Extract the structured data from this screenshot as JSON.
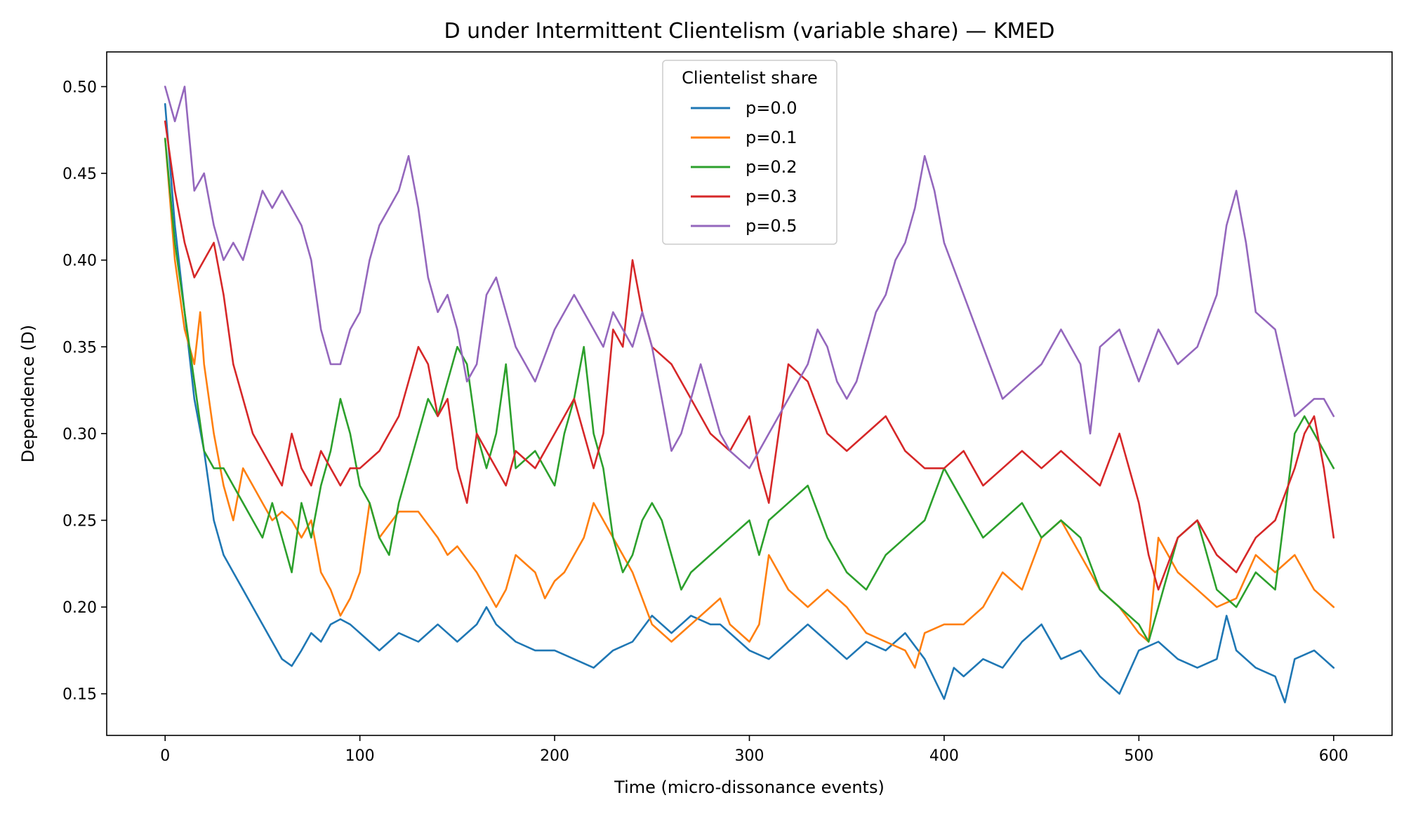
{
  "chart_data": {
    "type": "line",
    "title": "D under Intermittent Clientelism (variable share) — KMED",
    "xlabel": "Time (micro-dissonance events)",
    "ylabel": "Dependence (D)",
    "xlim": [
      -30,
      630
    ],
    "ylim": [
      0.126,
      0.52
    ],
    "xticks": [
      0,
      100,
      200,
      300,
      400,
      500,
      600
    ],
    "yticks": [
      0.15,
      0.2,
      0.25,
      0.3,
      0.35,
      0.4,
      0.45,
      0.5
    ],
    "xtick_labels": [
      "0",
      "100",
      "200",
      "300",
      "400",
      "500",
      "600"
    ],
    "ytick_labels": [
      "0.15",
      "0.20",
      "0.25",
      "0.30",
      "0.35",
      "0.40",
      "0.45",
      "0.50"
    ],
    "grid": false,
    "legend": {
      "title": "Clientelist share",
      "placement": "top-center"
    },
    "series": [
      {
        "name": "p=0.0",
        "color": "#1f77b4",
        "x": [
          0,
          5,
          10,
          15,
          20,
          25,
          30,
          35,
          40,
          45,
          50,
          55,
          60,
          65,
          70,
          75,
          80,
          85,
          90,
          95,
          100,
          110,
          120,
          130,
          140,
          150,
          160,
          165,
          170,
          175,
          180,
          190,
          200,
          210,
          220,
          230,
          240,
          250,
          255,
          260,
          265,
          270,
          280,
          285,
          290,
          300,
          310,
          320,
          330,
          340,
          350,
          360,
          370,
          380,
          390,
          400,
          405,
          410,
          420,
          430,
          440,
          450,
          460,
          470,
          480,
          490,
          500,
          510,
          520,
          530,
          540,
          545,
          550,
          560,
          570,
          575,
          580,
          590,
          595,
          600
        ],
        "y": [
          0.49,
          0.42,
          0.37,
          0.32,
          0.29,
          0.25,
          0.23,
          0.22,
          0.21,
          0.2,
          0.19,
          0.18,
          0.17,
          0.166,
          0.175,
          0.185,
          0.18,
          0.19,
          0.193,
          0.19,
          0.185,
          0.175,
          0.185,
          0.18,
          0.19,
          0.18,
          0.19,
          0.2,
          0.19,
          0.185,
          0.18,
          0.175,
          0.175,
          0.17,
          0.165,
          0.175,
          0.18,
          0.195,
          0.19,
          0.185,
          0.19,
          0.195,
          0.19,
          0.19,
          0.185,
          0.175,
          0.17,
          0.18,
          0.19,
          0.18,
          0.17,
          0.18,
          0.175,
          0.185,
          0.17,
          0.147,
          0.165,
          0.16,
          0.17,
          0.165,
          0.18,
          0.19,
          0.17,
          0.175,
          0.16,
          0.15,
          0.175,
          0.18,
          0.17,
          0.165,
          0.17,
          0.195,
          0.175,
          0.165,
          0.16,
          0.145,
          0.17,
          0.175,
          0.17,
          0.165
        ]
      },
      {
        "name": "p=0.1",
        "color": "#ff7f0e",
        "x": [
          0,
          5,
          10,
          15,
          18,
          20,
          25,
          30,
          35,
          40,
          45,
          50,
          55,
          60,
          65,
          70,
          75,
          80,
          85,
          90,
          95,
          100,
          105,
          110,
          120,
          130,
          140,
          145,
          150,
          160,
          170,
          175,
          180,
          190,
          195,
          200,
          205,
          210,
          215,
          220,
          230,
          235,
          240,
          250,
          260,
          270,
          280,
          285,
          290,
          300,
          305,
          310,
          320,
          330,
          340,
          350,
          360,
          370,
          380,
          385,
          390,
          400,
          410,
          420,
          430,
          440,
          450,
          460,
          470,
          480,
          490,
          500,
          505,
          510,
          520,
          530,
          540,
          550,
          560,
          570,
          580,
          590,
          600
        ],
        "y": [
          0.47,
          0.4,
          0.36,
          0.34,
          0.37,
          0.34,
          0.3,
          0.27,
          0.25,
          0.28,
          0.27,
          0.26,
          0.25,
          0.255,
          0.25,
          0.24,
          0.25,
          0.22,
          0.21,
          0.195,
          0.205,
          0.22,
          0.26,
          0.24,
          0.255,
          0.255,
          0.24,
          0.23,
          0.235,
          0.22,
          0.2,
          0.21,
          0.23,
          0.22,
          0.205,
          0.215,
          0.22,
          0.23,
          0.24,
          0.26,
          0.24,
          0.23,
          0.22,
          0.19,
          0.18,
          0.19,
          0.2,
          0.205,
          0.19,
          0.18,
          0.19,
          0.23,
          0.21,
          0.2,
          0.21,
          0.2,
          0.185,
          0.18,
          0.175,
          0.165,
          0.185,
          0.19,
          0.19,
          0.2,
          0.22,
          0.21,
          0.24,
          0.25,
          0.23,
          0.21,
          0.2,
          0.185,
          0.18,
          0.24,
          0.22,
          0.21,
          0.2,
          0.205,
          0.23,
          0.22,
          0.23,
          0.21,
          0.2
        ]
      },
      {
        "name": "p=0.2",
        "color": "#2ca02c",
        "x": [
          0,
          5,
          10,
          15,
          20,
          25,
          30,
          35,
          40,
          45,
          50,
          55,
          60,
          65,
          70,
          75,
          80,
          85,
          90,
          95,
          100,
          105,
          110,
          115,
          120,
          125,
          130,
          135,
          140,
          145,
          150,
          155,
          160,
          165,
          170,
          175,
          180,
          190,
          200,
          205,
          210,
          215,
          220,
          225,
          230,
          235,
          240,
          245,
          250,
          255,
          260,
          265,
          270,
          280,
          290,
          300,
          305,
          310,
          320,
          330,
          340,
          350,
          360,
          370,
          380,
          390,
          400,
          410,
          420,
          430,
          440,
          450,
          460,
          470,
          480,
          490,
          500,
          505,
          510,
          515,
          520,
          530,
          540,
          550,
          560,
          570,
          580,
          585,
          590,
          595,
          600
        ],
        "y": [
          0.47,
          0.41,
          0.37,
          0.33,
          0.29,
          0.28,
          0.28,
          0.27,
          0.26,
          0.25,
          0.24,
          0.26,
          0.24,
          0.22,
          0.26,
          0.24,
          0.27,
          0.29,
          0.32,
          0.3,
          0.27,
          0.26,
          0.24,
          0.23,
          0.26,
          0.28,
          0.3,
          0.32,
          0.31,
          0.33,
          0.35,
          0.34,
          0.3,
          0.28,
          0.3,
          0.34,
          0.28,
          0.29,
          0.27,
          0.3,
          0.32,
          0.35,
          0.3,
          0.28,
          0.24,
          0.22,
          0.23,
          0.25,
          0.26,
          0.25,
          0.23,
          0.21,
          0.22,
          0.23,
          0.24,
          0.25,
          0.23,
          0.25,
          0.26,
          0.27,
          0.24,
          0.22,
          0.21,
          0.23,
          0.24,
          0.25,
          0.28,
          0.26,
          0.24,
          0.25,
          0.26,
          0.24,
          0.25,
          0.24,
          0.21,
          0.2,
          0.19,
          0.18,
          0.2,
          0.22,
          0.24,
          0.25,
          0.21,
          0.2,
          0.22,
          0.21,
          0.3,
          0.31,
          0.3,
          0.29,
          0.28
        ]
      },
      {
        "name": "p=0.3",
        "color": "#d62728",
        "x": [
          0,
          5,
          10,
          15,
          20,
          25,
          30,
          35,
          40,
          45,
          50,
          55,
          60,
          65,
          70,
          75,
          80,
          85,
          90,
          95,
          100,
          110,
          120,
          125,
          130,
          135,
          140,
          145,
          150,
          155,
          160,
          170,
          175,
          180,
          190,
          200,
          210,
          215,
          220,
          225,
          230,
          235,
          240,
          245,
          250,
          260,
          270,
          280,
          290,
          300,
          305,
          310,
          320,
          330,
          340,
          350,
          360,
          370,
          380,
          390,
          400,
          410,
          420,
          430,
          440,
          450,
          460,
          470,
          480,
          490,
          500,
          505,
          510,
          520,
          530,
          540,
          550,
          560,
          570,
          580,
          585,
          590,
          595,
          600
        ],
        "y": [
          0.48,
          0.44,
          0.41,
          0.39,
          0.4,
          0.41,
          0.38,
          0.34,
          0.32,
          0.3,
          0.29,
          0.28,
          0.27,
          0.3,
          0.28,
          0.27,
          0.29,
          0.28,
          0.27,
          0.28,
          0.28,
          0.29,
          0.31,
          0.33,
          0.35,
          0.34,
          0.31,
          0.32,
          0.28,
          0.26,
          0.3,
          0.28,
          0.27,
          0.29,
          0.28,
          0.3,
          0.32,
          0.3,
          0.28,
          0.3,
          0.36,
          0.35,
          0.4,
          0.37,
          0.35,
          0.34,
          0.32,
          0.3,
          0.29,
          0.31,
          0.28,
          0.26,
          0.34,
          0.33,
          0.3,
          0.29,
          0.3,
          0.31,
          0.29,
          0.28,
          0.28,
          0.29,
          0.27,
          0.28,
          0.29,
          0.28,
          0.29,
          0.28,
          0.27,
          0.3,
          0.26,
          0.23,
          0.21,
          0.24,
          0.25,
          0.23,
          0.22,
          0.24,
          0.25,
          0.28,
          0.3,
          0.31,
          0.28,
          0.24
        ]
      },
      {
        "name": "p=0.5",
        "color": "#9467bd",
        "x": [
          0,
          5,
          10,
          15,
          20,
          25,
          30,
          35,
          40,
          45,
          50,
          55,
          60,
          65,
          70,
          75,
          80,
          85,
          90,
          95,
          100,
          105,
          110,
          115,
          120,
          125,
          130,
          135,
          140,
          145,
          150,
          155,
          160,
          165,
          170,
          175,
          180,
          185,
          190,
          200,
          210,
          215,
          220,
          225,
          230,
          235,
          240,
          245,
          250,
          255,
          260,
          265,
          270,
          275,
          280,
          285,
          290,
          300,
          310,
          320,
          330,
          335,
          340,
          345,
          350,
          355,
          360,
          365,
          370,
          375,
          380,
          385,
          390,
          395,
          400,
          410,
          420,
          430,
          440,
          450,
          460,
          470,
          475,
          480,
          490,
          500,
          510,
          520,
          530,
          540,
          545,
          550,
          555,
          560,
          570,
          580,
          590,
          595,
          600
        ],
        "y": [
          0.5,
          0.48,
          0.5,
          0.44,
          0.45,
          0.42,
          0.4,
          0.41,
          0.4,
          0.42,
          0.44,
          0.43,
          0.44,
          0.43,
          0.42,
          0.4,
          0.36,
          0.34,
          0.34,
          0.36,
          0.37,
          0.4,
          0.42,
          0.43,
          0.44,
          0.46,
          0.43,
          0.39,
          0.37,
          0.38,
          0.36,
          0.33,
          0.34,
          0.38,
          0.39,
          0.37,
          0.35,
          0.34,
          0.33,
          0.36,
          0.38,
          0.37,
          0.36,
          0.35,
          0.37,
          0.36,
          0.35,
          0.37,
          0.35,
          0.32,
          0.29,
          0.3,
          0.32,
          0.34,
          0.32,
          0.3,
          0.29,
          0.28,
          0.3,
          0.32,
          0.34,
          0.36,
          0.35,
          0.33,
          0.32,
          0.33,
          0.35,
          0.37,
          0.38,
          0.4,
          0.41,
          0.43,
          0.46,
          0.44,
          0.41,
          0.38,
          0.35,
          0.32,
          0.33,
          0.34,
          0.36,
          0.34,
          0.3,
          0.35,
          0.36,
          0.33,
          0.36,
          0.34,
          0.35,
          0.38,
          0.42,
          0.44,
          0.41,
          0.37,
          0.36,
          0.31,
          0.32,
          0.32,
          0.31
        ]
      }
    ]
  }
}
